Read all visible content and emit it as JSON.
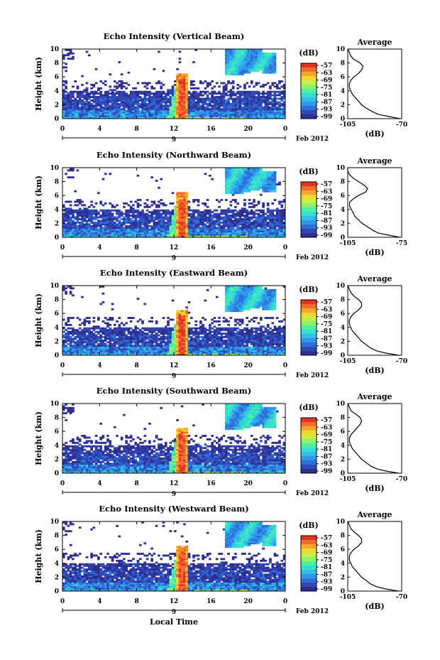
{
  "colors": {
    "scale": [
      "#2e2f8f",
      "#3149b7",
      "#2f6fd8",
      "#2f98ea",
      "#31bfe9",
      "#34dfd0",
      "#4ff0a0",
      "#8df36c",
      "#c8ef44",
      "#f0d82e",
      "#f8a52c",
      "#f36d2a",
      "#e03424"
    ],
    "background": "#ffffff",
    "line": "#000000"
  },
  "common": {
    "date_label": "Feb 2012",
    "date_marker": "9",
    "y_axis_label": "Height (km)",
    "x_axis_label": "Local Time",
    "cbar_unit": "(dB)",
    "avg_title": "Average",
    "avg_unit": "(dB)"
  },
  "chart_data": [
    {
      "type": "heatmap",
      "title": "Echo Intensity (Vertical Beam)",
      "ylabel": "Height (km)",
      "x_ticks": [
        "0",
        "4",
        "8",
        "12",
        "16",
        "20",
        "0"
      ],
      "y_ticks": [
        "0",
        "2",
        "4",
        "6",
        "8",
        "10"
      ],
      "xlim": [
        0,
        24
      ],
      "ylim": [
        0,
        10
      ],
      "colorbar": {
        "unit": "(dB)",
        "ticks": [
          "-57",
          "-63",
          "-69",
          "-75",
          "-81",
          "-87",
          "-93",
          "-99"
        ]
      },
      "average_profile": {
        "title": "Average",
        "xlabel": "(dB)",
        "x_ticks": [
          "-105",
          "-70"
        ],
        "xlim": [
          -105,
          -70
        ],
        "height_km": [
          0,
          0.3,
          0.6,
          1,
          1.5,
          2,
          2.5,
          3,
          3.5,
          4,
          4.5,
          5,
          5.5,
          6,
          6.5,
          7,
          7.5,
          8,
          8.5,
          9,
          9.5,
          10
        ],
        "db": [
          -71,
          -78,
          -85,
          -89,
          -93,
          -96,
          -98,
          -100,
          -102,
          -103,
          -104,
          -104,
          -103,
          -101,
          -98,
          -96,
          -95,
          -97,
          -101,
          -103,
          -104,
          -105
        ]
      }
    },
    {
      "type": "heatmap",
      "title": "Echo Intensity (Northward Beam)",
      "ylabel": "Height (km)",
      "x_ticks": [
        "0",
        "4",
        "8",
        "12",
        "16",
        "20",
        "0"
      ],
      "y_ticks": [
        "0",
        "2",
        "4",
        "6",
        "8",
        "10"
      ],
      "xlim": [
        0,
        24
      ],
      "ylim": [
        0,
        10
      ],
      "colorbar": {
        "unit": "(dB)",
        "ticks": [
          "-57",
          "-63",
          "-69",
          "-75",
          "-81",
          "-87",
          "-93",
          "-99"
        ]
      },
      "average_profile": {
        "title": "Average",
        "xlabel": "(dB)",
        "x_ticks": [
          "-105",
          "-75"
        ],
        "xlim": [
          -105,
          -75
        ],
        "height_km": [
          0,
          0.3,
          0.6,
          1,
          1.5,
          2,
          2.5,
          3,
          3.5,
          4,
          4.5,
          5,
          5.5,
          6,
          6.5,
          7,
          7.5,
          8,
          8.5,
          9,
          9.5,
          10
        ],
        "db": [
          -76,
          -82,
          -88,
          -91,
          -94,
          -97,
          -99,
          -101,
          -102,
          -103,
          -104,
          -104,
          -102,
          -99,
          -95,
          -94,
          -96,
          -99,
          -102,
          -104,
          -105,
          -105
        ]
      }
    },
    {
      "type": "heatmap",
      "title": "Echo Intensity (Eastward Beam)",
      "ylabel": "Height (km)",
      "x_ticks": [
        "0",
        "4",
        "8",
        "12",
        "16",
        "20",
        "0"
      ],
      "y_ticks": [
        "0",
        "2",
        "4",
        "6",
        "8",
        "10"
      ],
      "xlim": [
        0,
        24
      ],
      "ylim": [
        0,
        10
      ],
      "colorbar": {
        "unit": "(dB)",
        "ticks": [
          "-57",
          "-63",
          "-69",
          "-75",
          "-81",
          "-87",
          "-93",
          "-99"
        ]
      },
      "average_profile": {
        "title": "Average",
        "xlabel": "(dB)",
        "x_ticks": [
          "-105",
          "-70"
        ],
        "xlim": [
          -105,
          -70
        ],
        "height_km": [
          0,
          0.3,
          0.6,
          1,
          1.5,
          2,
          2.5,
          3,
          3.5,
          4,
          4.5,
          5,
          5.5,
          6,
          6.5,
          7,
          7.5,
          8,
          8.5,
          9,
          9.5,
          10
        ],
        "db": [
          -72,
          -80,
          -86,
          -90,
          -93,
          -96,
          -98,
          -100,
          -102,
          -103,
          -104,
          -104,
          -103,
          -101,
          -98,
          -96,
          -96,
          -98,
          -101,
          -103,
          -104,
          -105
        ]
      }
    },
    {
      "type": "heatmap",
      "title": "Echo Intensity (Southward Beam)",
      "ylabel": "Height (km)",
      "x_ticks": [
        "0",
        "4",
        "8",
        "12",
        "16",
        "20",
        "0"
      ],
      "y_ticks": [
        "0",
        "2",
        "4",
        "6",
        "8",
        "10"
      ],
      "xlim": [
        0,
        24
      ],
      "ylim": [
        0,
        10
      ],
      "colorbar": {
        "unit": "(dB)",
        "ticks": [
          "-57",
          "-63",
          "-69",
          "-75",
          "-81",
          "-87",
          "-93",
          "-99"
        ]
      },
      "average_profile": {
        "title": "Average",
        "xlabel": "(dB)",
        "x_ticks": [
          "-105",
          "-70"
        ],
        "xlim": [
          -105,
          -70
        ],
        "height_km": [
          0,
          0.3,
          0.6,
          1,
          1.5,
          2,
          2.5,
          3,
          3.5,
          4,
          4.5,
          5,
          5.5,
          6,
          6.5,
          7,
          7.5,
          8,
          8.5,
          9,
          9.5,
          10
        ],
        "db": [
          -72,
          -80,
          -86,
          -90,
          -93,
          -96,
          -98,
          -100,
          -102,
          -103,
          -104,
          -104,
          -103,
          -101,
          -99,
          -97,
          -96,
          -97,
          -100,
          -103,
          -104,
          -105
        ]
      }
    },
    {
      "type": "heatmap",
      "title": "Echo Intensity (Westward Beam)",
      "ylabel": "Height (km)",
      "xlabel": "Local Time",
      "x_ticks": [
        "0",
        "4",
        "8",
        "12",
        "16",
        "20",
        "0"
      ],
      "y_ticks": [
        "0",
        "2",
        "4",
        "6",
        "8",
        "10"
      ],
      "xlim": [
        0,
        24
      ],
      "ylim": [
        0,
        10
      ],
      "colorbar": {
        "unit": "(dB)",
        "ticks": [
          "-57",
          "-63",
          "-69",
          "-75",
          "-81",
          "-87",
          "-93",
          "-99"
        ]
      },
      "average_profile": {
        "title": "Average",
        "xlabel": "(dB)",
        "x_ticks": [
          "-105",
          "-70"
        ],
        "xlim": [
          -105,
          -70
        ],
        "height_km": [
          0,
          0.3,
          0.6,
          1,
          1.5,
          2,
          2.5,
          3,
          3.5,
          4,
          4.5,
          5,
          5.5,
          6,
          6.5,
          7,
          7.5,
          8,
          8.5,
          9,
          9.5,
          10
        ],
        "db": [
          -72,
          -80,
          -86,
          -90,
          -93,
          -96,
          -98,
          -100,
          -102,
          -103,
          -104,
          -104,
          -103,
          -101,
          -98,
          -96,
          -96,
          -98,
          -101,
          -103,
          -104,
          -105
        ]
      }
    }
  ]
}
